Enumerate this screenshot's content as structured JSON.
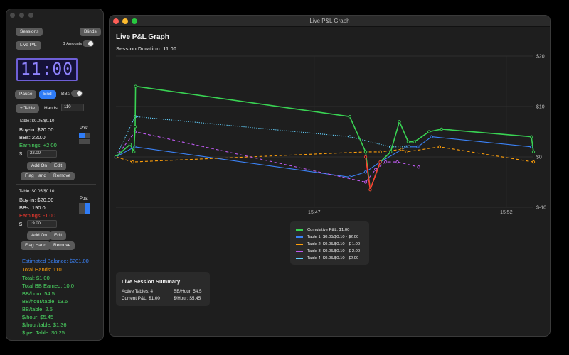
{
  "sidebar": {
    "sessions_btn": "Sessions",
    "blinds_btn": "Blinds",
    "live_pl_btn": "Live P/L",
    "amounts_label": "$ Amounts",
    "clock": "11:00",
    "pause_btn": "Pause",
    "end_btn": "End",
    "bbs_label": "BBs",
    "add_table_btn": "+ Table",
    "hands_label": "Hands:",
    "hands_value": "110",
    "tables": [
      {
        "header": "Table: $0.05/$0.10",
        "pos_label": "Pos:",
        "buyin": "Buy-in: $20.00",
        "bbs": "BBs: 220.0",
        "earnings": "Earnings: +2.00",
        "dollar": "$",
        "stack_value": "22.00",
        "add_on_btn": "Add On",
        "edit_btn": "Edit",
        "flag_btn": "Flag Hand",
        "remove_btn": "Remove"
      },
      {
        "header": "Table: $0.05/$0.10",
        "pos_label": "Pos:",
        "buyin": "Buy-in: $20.00",
        "bbs": "BBs: 190.0",
        "earnings": "Earnings: -1.00",
        "dollar": "$",
        "stack_value": "19.00",
        "add_on_btn": "Add On",
        "edit_btn": "Edit",
        "flag_btn": "Flag Hand",
        "remove_btn": "Remove"
      }
    ],
    "stats": {
      "balance": "Estimated Balance: $201.00",
      "total_hands": "Total Hands: 110",
      "total": "Total: $1.00",
      "total_bb": "Total BB Earned: 10.0",
      "bb_hour": "BB/hour: 54.5",
      "bb_hour_table": "BB/hour/table: 13.6",
      "bb_table": "BB/table: 2.5",
      "usd_hour": "$/hour: $5.45",
      "usd_hour_table": "$/hour/table: $1.36",
      "usd_table": "$ per Table: $0.25"
    }
  },
  "window": {
    "title": "Live P&L Graph",
    "graph_title": "Live P&L Graph",
    "duration": "Session Duration: 11:00"
  },
  "summary": {
    "title": "Live Session Summary",
    "active_tables": "Active Tables: 4",
    "current_pl": "Current P&L: $1.00",
    "bb_hour": "BB/Hour: 54.5",
    "usd_hour": "$/Hour: $5.45"
  },
  "colors": {
    "cumulative": "#39d353",
    "table1": "#3b82f6",
    "table2": "#ff9f0a",
    "table3": "#bf5af2",
    "table4": "#64d2ff",
    "accent": "#2f7cf6",
    "drop": "#ff3b30"
  },
  "chart_data": {
    "type": "line",
    "x_tick_labels": [
      "15:47",
      "15:52"
    ],
    "y_tick_labels": [
      "$20",
      "$10",
      "$0",
      "$-10"
    ],
    "ylim": [
      -10,
      20
    ],
    "xlim": [
      0,
      100
    ],
    "grid": true,
    "legend_position": "bottom-center",
    "series": [
      {
        "name": "Cumulative P&L: $1.00",
        "color_key": "cumulative",
        "style": "solid",
        "points": [
          [
            0,
            0
          ],
          [
            3.4,
            2.5
          ],
          [
            4.3,
            1
          ],
          [
            4.6,
            6
          ],
          [
            4.7,
            14
          ],
          [
            56,
            8
          ],
          [
            59.8,
            1
          ],
          [
            60.9,
            -6.5
          ],
          [
            63.3,
            -1
          ],
          [
            65.8,
            1
          ],
          [
            67.9,
            7
          ],
          [
            70,
            3
          ],
          [
            71.5,
            3
          ],
          [
            75,
            5
          ],
          [
            78,
            5.5
          ],
          [
            99.5,
            4
          ],
          [
            100,
            1
          ]
        ]
      },
      {
        "name": "Table 1: $0.05/$0.10 - $2.00",
        "color_key": "table1",
        "style": "solid",
        "points": [
          [
            0,
            0
          ],
          [
            4.5,
            2
          ],
          [
            56,
            -4
          ],
          [
            59.8,
            -3
          ],
          [
            63.3,
            -1
          ],
          [
            69.6,
            2
          ],
          [
            72.3,
            2
          ],
          [
            75.6,
            4
          ],
          [
            99.5,
            2
          ]
        ]
      },
      {
        "name": "Table 2: $0.05/$0.10 - $-1.00",
        "color_key": "table2",
        "style": "dashed",
        "points": [
          [
            0,
            0
          ],
          [
            4,
            -1
          ],
          [
            59.8,
            1
          ],
          [
            63.3,
            1
          ],
          [
            68.4,
            1.5
          ],
          [
            69.6,
            1
          ],
          [
            77.5,
            2
          ],
          [
            100,
            -1
          ]
        ]
      },
      {
        "name": "Table 3: $0.05/$0.10 - $-2.00",
        "color_key": "table3",
        "style": "dashed",
        "points": [
          [
            0,
            0
          ],
          [
            4.6,
            5
          ],
          [
            59.8,
            -5
          ],
          [
            62.2,
            -2.5
          ],
          [
            64.6,
            -1
          ],
          [
            67.4,
            -1
          ],
          [
            72.5,
            -2
          ]
        ]
      },
      {
        "name": "Table 4: $0.05/$0.10 - $2.00",
        "color_key": "table4",
        "style": "dotted",
        "points": [
          [
            0,
            0
          ],
          [
            4.6,
            8
          ],
          [
            56,
            4
          ],
          [
            65.8,
            2
          ],
          [
            70.2,
            2
          ]
        ]
      },
      {
        "name": "",
        "color_key": "drop",
        "style": "solid",
        "points": [
          [
            59.8,
            0
          ],
          [
            60.9,
            -6.5
          ],
          [
            63.3,
            -1
          ]
        ]
      }
    ]
  }
}
